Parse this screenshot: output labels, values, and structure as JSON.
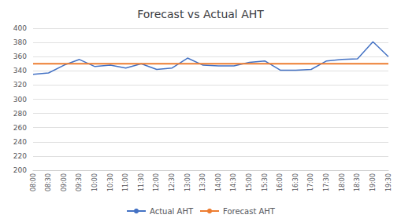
{
  "chart_data": {
    "type": "line",
    "title": "Forecast vs Actual AHT",
    "categories": [
      "08:00",
      "08:30",
      "09:00",
      "09:30",
      "10:00",
      "10:30",
      "11:00",
      "11:30",
      "12:00",
      "12:30",
      "13:00",
      "13:30",
      "14:00",
      "14:30",
      "15:00",
      "15:30",
      "16:00",
      "16:30",
      "17:00",
      "17:30",
      "18:00",
      "18:30",
      "19:00",
      "19:30"
    ],
    "series": [
      {
        "name": "Actual AHT",
        "color": "#4472C4",
        "type": "line",
        "values": [
          335,
          337,
          348,
          356,
          346,
          348,
          344,
          350,
          342,
          344,
          358,
          348,
          347,
          347,
          352,
          354,
          341,
          341,
          342,
          354,
          356,
          357,
          381,
          360
        ]
      },
      {
        "name": "Forecast AHT",
        "color": "#ED7D31",
        "type": "line",
        "values": [
          350,
          350,
          350,
          350,
          350,
          350,
          350,
          350,
          350,
          350,
          350,
          350,
          350,
          350,
          350,
          350,
          350,
          350,
          350,
          350,
          350,
          350,
          350,
          350
        ]
      }
    ],
    "ylim": [
      200,
      400
    ],
    "yticks": [
      200,
      220,
      240,
      260,
      280,
      300,
      320,
      340,
      360,
      380,
      400
    ],
    "grid": true,
    "legend": "bottom"
  }
}
